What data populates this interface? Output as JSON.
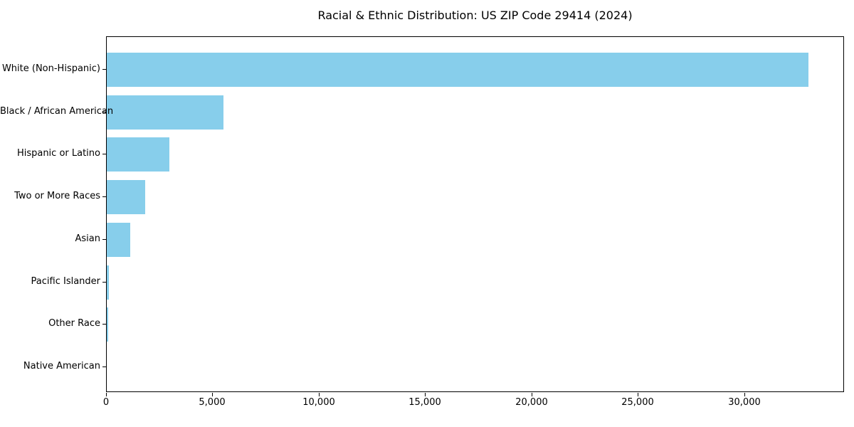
{
  "chart_data": {
    "type": "bar",
    "orientation": "horizontal",
    "title": "Racial & Ethnic Distribution: US ZIP Code 29414 (2024)",
    "categories": [
      "White (Non-Hispanic)",
      "Black / African American",
      "Hispanic or Latino",
      "Two or More Races",
      "Asian",
      "Pacific Islander",
      "Other Race",
      "Native American"
    ],
    "values": [
      33000,
      5500,
      2950,
      1800,
      1100,
      110,
      75,
      0
    ],
    "xlabel": "",
    "ylabel": "",
    "xlim": [
      0,
      34700
    ],
    "x_ticks": [
      0,
      5000,
      10000,
      15000,
      20000,
      25000,
      30000
    ],
    "x_tick_labels": [
      "0",
      "5,000",
      "10,000",
      "15,000",
      "20,000",
      "25,000",
      "30,000"
    ],
    "bar_color": "#87CEEB",
    "axis_color": "#000000",
    "background_color": "#ffffff",
    "grid": false,
    "legend": "none"
  }
}
